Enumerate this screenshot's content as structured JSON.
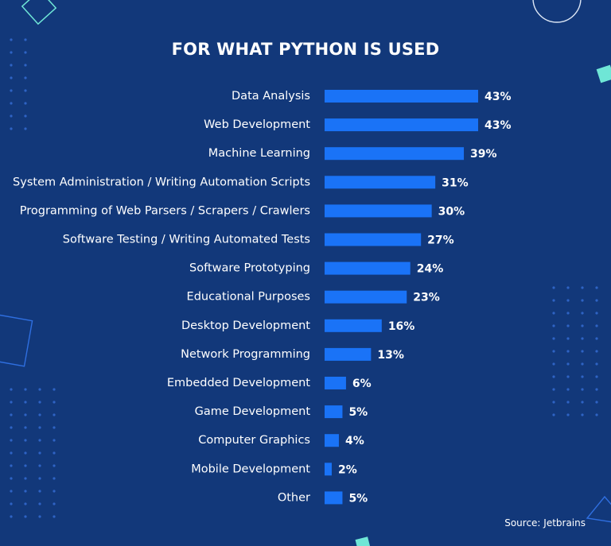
{
  "title": "FOR WHAT PYTHON IS USED",
  "source": "Source: Jetbrains",
  "colors": {
    "background": "#12387a",
    "bar": "#1a73f7",
    "text": "#ffffff",
    "accent": "#6fe6d6"
  },
  "chart_data": {
    "type": "bar",
    "orientation": "horizontal",
    "title": "FOR WHAT PYTHON IS USED",
    "xlabel": "",
    "ylabel": "",
    "grid": false,
    "xlim": [
      0,
      43
    ],
    "value_suffix": "%",
    "categories": [
      "Data Analysis",
      "Web Development",
      "Machine Learning",
      "System Administration / Writing Automation Scripts",
      "Programming of Web Parsers / Scrapers / Crawlers",
      "Software Testing / Writing Automated Tests",
      "Software Prototyping",
      "Educational Purposes",
      "Desktop Development",
      "Network Programming",
      "Embedded Development",
      "Game Development",
      "Computer Graphics",
      "Mobile Development",
      "Other"
    ],
    "values": [
      43,
      43,
      39,
      31,
      30,
      27,
      24,
      23,
      16,
      13,
      6,
      5,
      4,
      2,
      5
    ],
    "data_labels": [
      "43%",
      "43%",
      "39%",
      "31%",
      "30%",
      "27%",
      "24%",
      "23%",
      "16%",
      "13%",
      "6%",
      "5%",
      "4%",
      "2%",
      "5%"
    ]
  }
}
